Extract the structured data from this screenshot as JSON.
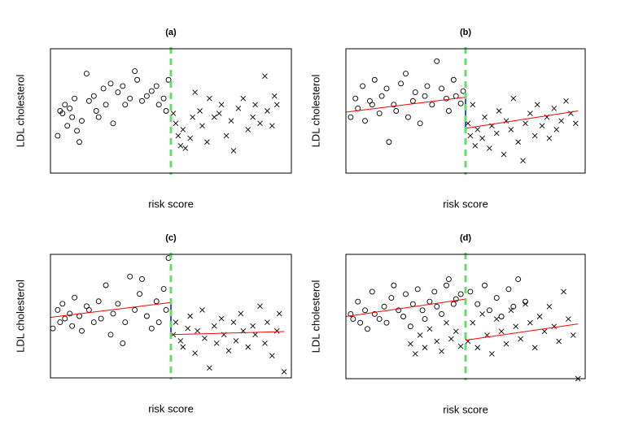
{
  "chart_data": [
    {
      "type": "scatter",
      "title": "(a)",
      "xlabel": "risk score",
      "ylabel": "LDL cholesterol",
      "xlim": [
        0,
        100
      ],
      "ylim": [
        0,
        100
      ],
      "cutoff": {
        "x": 50,
        "color": "#66dd66"
      },
      "series": [
        {
          "marker": "circle",
          "color": "#000000",
          "x": [
            3,
            4,
            5,
            6,
            7,
            8,
            9,
            10,
            11,
            12,
            13,
            15,
            16,
            18,
            19,
            20,
            22,
            23,
            25,
            26,
            28,
            30,
            31,
            33,
            35,
            36,
            38,
            40,
            42,
            44,
            45,
            47,
            48,
            49
          ],
          "y": [
            30,
            50,
            48,
            55,
            38,
            52,
            45,
            60,
            34,
            25,
            42,
            80,
            58,
            62,
            50,
            45,
            68,
            55,
            72,
            40,
            65,
            70,
            55,
            60,
            82,
            75,
            58,
            62,
            66,
            70,
            55,
            60,
            50,
            75
          ]
        },
        {
          "marker": "x",
          "color": "#000000",
          "x": [
            51,
            52,
            53,
            54,
            55,
            56,
            58,
            59,
            60,
            62,
            63,
            65,
            66,
            68,
            70,
            71,
            73,
            75,
            76,
            78,
            80,
            82,
            84,
            85,
            87,
            89,
            90,
            92,
            93,
            94
          ],
          "y": [
            48,
            40,
            30,
            22,
            35,
            20,
            28,
            45,
            65,
            50,
            38,
            25,
            60,
            45,
            48,
            55,
            30,
            42,
            18,
            52,
            60,
            35,
            45,
            55,
            40,
            78,
            50,
            38,
            62,
            55
          ]
        }
      ],
      "lines": []
    },
    {
      "type": "scatter",
      "title": "(b)",
      "xlabel": "risk score",
      "ylabel": "LDL cholesterol",
      "xlim": [
        0,
        100
      ],
      "ylim": [
        0,
        100
      ],
      "cutoff": {
        "x": 50,
        "color": "#66dd66"
      },
      "series": [
        {
          "marker": "circle",
          "color": "#000000",
          "x": [
            2,
            4,
            5,
            7,
            8,
            10,
            11,
            12,
            14,
            15,
            17,
            18,
            20,
            21,
            23,
            25,
            26,
            28,
            29,
            31,
            33,
            34,
            36,
            38,
            40,
            42,
            43,
            45,
            46,
            48,
            49
          ],
          "y": [
            45,
            60,
            52,
            70,
            42,
            58,
            55,
            75,
            48,
            62,
            68,
            25,
            55,
            50,
            72,
            80,
            45,
            58,
            65,
            40,
            62,
            70,
            55,
            90,
            68,
            60,
            50,
            75,
            62,
            56,
            66
          ]
        },
        {
          "marker": "x",
          "color": "#000000",
          "x": [
            51,
            52,
            53,
            54,
            55,
            57,
            58,
            60,
            61,
            63,
            64,
            66,
            67,
            69,
            70,
            72,
            74,
            75,
            77,
            79,
            80,
            82,
            84,
            85,
            87,
            88,
            90,
            92,
            94,
            96
          ],
          "y": [
            40,
            30,
            55,
            22,
            35,
            28,
            45,
            20,
            38,
            32,
            50,
            15,
            42,
            35,
            60,
            25,
            10,
            40,
            48,
            30,
            55,
            38,
            45,
            28,
            52,
            35,
            42,
            58,
            48,
            40
          ]
        }
      ],
      "lines": [
        {
          "color": "#ff0000",
          "x": [
            0,
            50
          ],
          "y": [
            49,
            61
          ]
        },
        {
          "color": "#ff0000",
          "x": [
            50,
            97
          ],
          "y": [
            36,
            50
          ]
        },
        {
          "color": "#3333cc",
          "x": [
            50,
            50
          ],
          "y": [
            61,
            36
          ]
        }
      ]
    },
    {
      "type": "scatter",
      "title": "(c)",
      "xlabel": "risk score",
      "ylabel": "LDL cholesterol",
      "xlim": [
        0,
        100
      ],
      "ylim": [
        0,
        100
      ],
      "cutoff": {
        "x": 50,
        "color": "#66dd66"
      },
      "series": [
        {
          "marker": "circle",
          "color": "#000000",
          "x": [
            1,
            3,
            4,
            5,
            6,
            8,
            9,
            10,
            12,
            13,
            15,
            16,
            18,
            20,
            21,
            23,
            25,
            26,
            28,
            30,
            31,
            33,
            35,
            37,
            38,
            40,
            42,
            44,
            45,
            47,
            48,
            49
          ],
          "y": [
            40,
            55,
            45,
            60,
            48,
            52,
            42,
            65,
            50,
            38,
            58,
            55,
            45,
            62,
            48,
            75,
            35,
            52,
            60,
            28,
            45,
            82,
            55,
            68,
            80,
            50,
            40,
            62,
            45,
            72,
            55,
            97
          ]
        },
        {
          "marker": "x",
          "color": "#000000",
          "x": [
            51,
            52,
            54,
            55,
            57,
            58,
            60,
            61,
            63,
            64,
            66,
            68,
            69,
            71,
            72,
            74,
            76,
            77,
            79,
            80,
            82,
            84,
            85,
            87,
            89,
            90,
            92,
            94,
            95,
            97
          ],
          "y": [
            35,
            45,
            30,
            25,
            40,
            50,
            20,
            38,
            55,
            32,
            8,
            42,
            28,
            48,
            35,
            22,
            45,
            30,
            52,
            38,
            25,
            42,
            35,
            58,
            28,
            45,
            18,
            38,
            52,
            5
          ]
        }
      ],
      "lines": [
        {
          "color": "#ff0000",
          "x": [
            0,
            50
          ],
          "y": [
            49,
            61
          ]
        },
        {
          "color": "#ff0000",
          "x": [
            50,
            97
          ],
          "y": [
            35,
            37.5
          ]
        },
        {
          "color": "#3333cc",
          "x": [
            50,
            50
          ],
          "y": [
            61,
            35
          ]
        }
      ]
    },
    {
      "type": "scatter",
      "title": "(d)",
      "xlabel": "risk score",
      "ylabel": "LDL cholesterol",
      "xlim": [
        0,
        100
      ],
      "ylim": [
        0,
        100
      ],
      "cutoff": {
        "x": 50,
        "color": "#66dd66"
      },
      "series": [
        {
          "marker": "circle",
          "color": "#000000",
          "x": [
            2,
            3,
            5,
            6,
            8,
            9,
            11,
            12,
            14,
            16,
            17,
            19,
            20,
            22,
            24,
            25,
            27,
            28,
            30,
            32,
            33,
            35,
            37,
            38,
            40,
            42,
            43,
            45,
            46,
            48,
            52,
            55,
            58,
            60,
            63,
            65,
            68,
            70,
            72,
            75
          ],
          "y": [
            52,
            48,
            62,
            45,
            55,
            40,
            70,
            52,
            48,
            58,
            45,
            65,
            75,
            55,
            50,
            68,
            42,
            60,
            72,
            55,
            48,
            62,
            70,
            58,
            52,
            75,
            80,
            60,
            64,
            68,
            70,
            60,
            75,
            55,
            65,
            50,
            72,
            58,
            80,
            62
          ]
        },
        {
          "marker": "x",
          "color": "#000000",
          "x": [
            27,
            29,
            31,
            33,
            35,
            38,
            40,
            42,
            44,
            46,
            48,
            51,
            53,
            55,
            57,
            59,
            61,
            63,
            65,
            67,
            69,
            71,
            73,
            75,
            77,
            79,
            81,
            83,
            85,
            87,
            89,
            91,
            93,
            95,
            97
          ],
          "y": [
            28,
            20,
            35,
            25,
            40,
            30,
            22,
            45,
            32,
            38,
            26,
            30,
            45,
            25,
            52,
            35,
            20,
            48,
            38,
            28,
            55,
            42,
            32,
            60,
            45,
            25,
            50,
            38,
            58,
            42,
            30,
            70,
            48,
            35,
            0
          ]
        }
      ],
      "lines": [
        {
          "color": "#ff0000",
          "x": [
            0,
            50
          ],
          "y": [
            50,
            64
          ]
        },
        {
          "color": "#ff0000",
          "x": [
            50,
            97
          ],
          "y": [
            31,
            44
          ]
        }
      ]
    }
  ]
}
